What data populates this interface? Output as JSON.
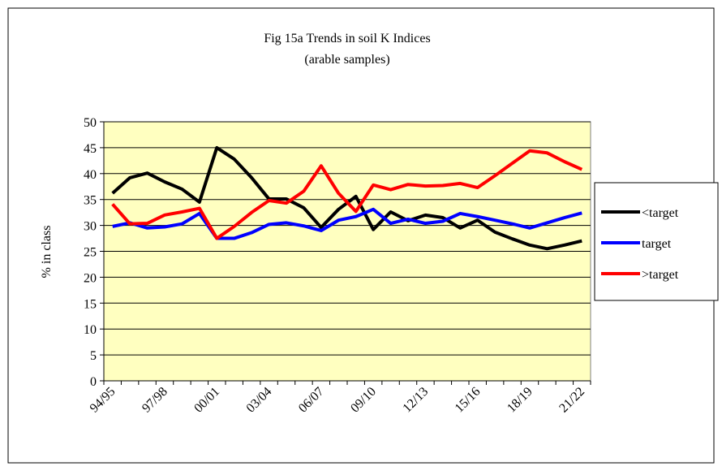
{
  "chart_data": {
    "type": "line",
    "title": "Fig 15a Trends in soil K Indices",
    "subtitle": "(arable samples)",
    "y_label": "% in class",
    "categories": [
      "94/95",
      null,
      null,
      "97/98",
      null,
      null,
      "00/01",
      null,
      null,
      "03/04",
      null,
      null,
      "06/07",
      null,
      null,
      "09/10",
      null,
      null,
      "12/13",
      null,
      null,
      "15/16",
      null,
      null,
      "18/19",
      null,
      null,
      "21/22"
    ],
    "series": [
      {
        "name": "<target",
        "color": "#000000",
        "values": [
          36.2,
          39.2,
          40.1,
          38.4,
          37.0,
          34.5,
          45.0,
          42.8,
          39.2,
          35.1,
          35.1,
          33.4,
          29.6,
          33.1,
          35.6,
          29.2,
          32.6,
          30.9,
          32.0,
          31.5,
          29.5,
          31.0,
          28.7,
          27.4,
          26.2,
          25.5,
          26.2,
          27.0
        ]
      },
      {
        "name": "target",
        "color": "#0000ff",
        "values": [
          29.8,
          30.5,
          29.5,
          29.7,
          30.3,
          32.3,
          27.5,
          27.5,
          28.6,
          30.2,
          30.5,
          29.9,
          29.0,
          31.0,
          31.7,
          33.1,
          30.4,
          31.2,
          30.4,
          30.8,
          32.3,
          31.7,
          31.0,
          30.3,
          29.5,
          30.5,
          31.5,
          32.4
        ]
      },
      {
        "name": ">target",
        "color": "#ff0000",
        "values": [
          34.1,
          30.3,
          30.4,
          32.0,
          32.6,
          33.3,
          27.5,
          29.8,
          32.5,
          34.8,
          34.3,
          36.6,
          41.5,
          36.2,
          32.7,
          37.8,
          36.9,
          37.9,
          37.6,
          37.7,
          38.1,
          37.3,
          39.6,
          42.0,
          44.4,
          44.0,
          42.3,
          40.8
        ]
      }
    ],
    "ylim": [
      0,
      50
    ],
    "yticks": [
      0,
      5,
      10,
      15,
      20,
      25,
      30,
      35,
      40,
      45,
      50
    ],
    "grid": true,
    "legend": "right",
    "plot_background": "#ffffc0"
  }
}
